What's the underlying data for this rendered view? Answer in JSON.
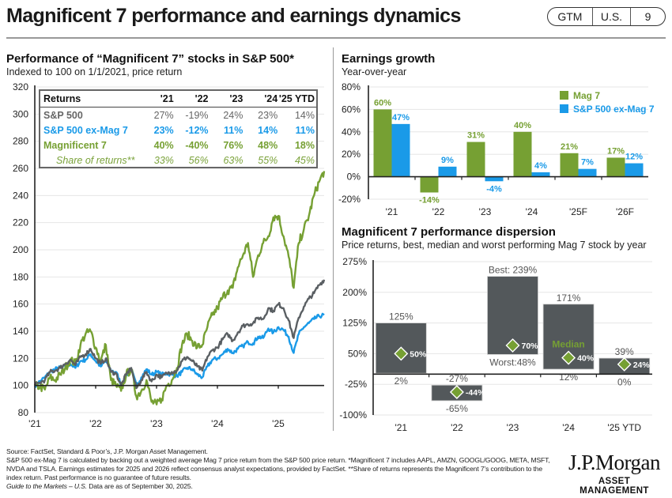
{
  "header": {
    "title": "Magnificent 7 performance and earnings dynamics",
    "badge": [
      "GTM",
      "U.S.",
      "9"
    ]
  },
  "colors": {
    "sp500": "#5a5f63",
    "ex_mag7": "#1a9ae8",
    "mag7": "#76a033",
    "dispersion_bar": "#53585b",
    "median_marker": "#76a033"
  },
  "performance_panel": {
    "title": "Performance of “Magnificent 7” stocks in S&P 500*",
    "subtitle": "Indexed to 100 on 1/1/2021, price return",
    "table": {
      "headers": [
        "Returns",
        "'21",
        "'22",
        "'23",
        "'24",
        "'25 YTD"
      ],
      "rows": [
        {
          "label": "S&P 500",
          "values": [
            "27%",
            "-19%",
            "24%",
            "23%",
            "14%"
          ]
        },
        {
          "label": "S&P 500 ex-Mag 7",
          "values": [
            "23%",
            "-12%",
            "11%",
            "14%",
            "11%"
          ]
        },
        {
          "label": "Magnificent 7",
          "values": [
            "40%",
            "-40%",
            "76%",
            "48%",
            "18%"
          ]
        },
        {
          "label": "Share of returns**",
          "values": [
            "33%",
            "56%",
            "63%",
            "55%",
            "45%"
          ]
        }
      ]
    }
  },
  "earnings_panel": {
    "title": "Earnings growth",
    "subtitle": "Year-over-year"
  },
  "dispersion_panel": {
    "title": "Magnificent 7 performance dispersion",
    "subtitle": "Price returns, best, median and worst performing Mag 7 stock by year"
  },
  "chart_data": [
    {
      "type": "line",
      "title": "Performance of “Magnificent 7” stocks in S&P 500*",
      "subtitle": "Indexed to 100 on 1/1/2021, price return",
      "xlabel": "",
      "ylabel": "",
      "x_ticks": [
        "'21",
        "'22",
        "'23",
        "'24",
        "'25"
      ],
      "y_ticks": [
        80,
        100,
        120,
        140,
        160,
        180,
        200,
        220,
        240,
        260,
        280,
        300,
        320
      ],
      "ylim": [
        80,
        320
      ],
      "xlim": [
        "2021-01",
        "2025-09"
      ],
      "grid": true,
      "x": [
        "2021-01",
        "2021-02",
        "2021-03",
        "2021-04",
        "2021-05",
        "2021-06",
        "2021-07",
        "2021-08",
        "2021-09",
        "2021-10",
        "2021-11",
        "2021-12",
        "2022-01",
        "2022-02",
        "2022-03",
        "2022-04",
        "2022-05",
        "2022-06",
        "2022-07",
        "2022-08",
        "2022-09",
        "2022-10",
        "2022-11",
        "2022-12",
        "2023-01",
        "2023-02",
        "2023-03",
        "2023-04",
        "2023-05",
        "2023-06",
        "2023-07",
        "2023-08",
        "2023-09",
        "2023-10",
        "2023-11",
        "2023-12",
        "2024-01",
        "2024-02",
        "2024-03",
        "2024-04",
        "2024-05",
        "2024-06",
        "2024-07",
        "2024-08",
        "2024-09",
        "2024-10",
        "2024-11",
        "2024-12",
        "2025-01",
        "2025-02",
        "2025-03",
        "2025-04",
        "2025-05",
        "2025-06",
        "2025-07",
        "2025-08",
        "2025-09",
        "2025-09e"
      ],
      "series": [
        {
          "name": "S&P 500",
          "values": [
            100,
            102,
            104,
            110,
            111,
            113,
            116,
            119,
            115,
            121,
            123,
            127,
            120,
            116,
            120,
            110,
            109,
            100,
            108,
            113,
            98,
            104,
            110,
            103,
            108,
            106,
            109,
            110,
            111,
            118,
            121,
            118,
            114,
            111,
            121,
            126,
            128,
            134,
            138,
            133,
            139,
            144,
            145,
            146,
            150,
            149,
            157,
            155,
            160,
            157,
            148,
            135,
            150,
            158,
            164,
            168,
            174,
            178
          ]
        },
        {
          "name": "S&P 500 ex-Mag 7",
          "values": [
            100,
            103,
            106,
            110,
            112,
            113,
            114,
            116,
            113,
            118,
            119,
            123,
            118,
            114,
            118,
            111,
            110,
            101,
            107,
            112,
            100,
            106,
            112,
            108,
            110,
            108,
            109,
            108,
            107,
            110,
            113,
            112,
            108,
            106,
            114,
            119,
            120,
            123,
            127,
            124,
            127,
            129,
            132,
            131,
            136,
            135,
            142,
            139,
            143,
            141,
            136,
            124,
            138,
            143,
            146,
            149,
            151,
            152
          ]
        },
        {
          "name": "Magnificent 7",
          "values": [
            100,
            99,
            97,
            106,
            104,
            108,
            113,
            119,
            116,
            130,
            138,
            140,
            128,
            118,
            130,
            104,
            100,
            96,
            108,
            112,
            92,
            96,
            104,
            88,
            86,
            90,
            100,
            104,
            113,
            130,
            138,
            133,
            128,
            130,
            143,
            152,
            157,
            165,
            170,
            172,
            187,
            196,
            205,
            180,
            196,
            205,
            210,
            224,
            225,
            210,
            195,
            172,
            205,
            215,
            225,
            240,
            250,
            258
          ]
        }
      ]
    },
    {
      "type": "bar",
      "title": "Earnings growth",
      "subtitle": "Year-over-year",
      "categories": [
        "'21",
        "'22",
        "'23",
        "'24",
        "'25F",
        "'26F"
      ],
      "series": [
        {
          "name": "Mag 7",
          "values": [
            60,
            -14,
            31,
            40,
            21,
            17
          ],
          "labels": [
            "60%",
            "-14%",
            "31%",
            "40%",
            "21%",
            "17%"
          ]
        },
        {
          "name": "S&P 500 ex-Mag 7",
          "values": [
            47,
            9,
            -4,
            4,
            7,
            12
          ],
          "labels": [
            "47%",
            "9%",
            "-4%",
            "4%",
            "7%",
            "12%"
          ]
        }
      ],
      "y_ticks": [
        "-20%",
        "0%",
        "20%",
        "40%",
        "60%",
        "80%"
      ],
      "ylim": [
        -20,
        80
      ],
      "grid": true,
      "legend": "top-right"
    },
    {
      "type": "bar",
      "subtype": "floating-range",
      "title": "Magnificent 7 performance dispersion",
      "subtitle": "Price returns, best, median and worst performing Mag 7 stock by year",
      "categories": [
        "'21",
        "'22",
        "'23",
        "'24",
        "'25 YTD"
      ],
      "best": [
        125,
        -27,
        239,
        171,
        39
      ],
      "median": [
        50,
        -44,
        70,
        40,
        24
      ],
      "worst": [
        2,
        -65,
        48,
        12,
        0
      ],
      "best_labels": [
        "125%",
        "-27%",
        "Best: 239%",
        "171%",
        "39%"
      ],
      "median_labels": [
        "50%",
        "-44%",
        "70%",
        "40%",
        "24%"
      ],
      "worst_labels": [
        "2%",
        "-65%",
        "Worst:48%",
        "12%",
        "0%"
      ],
      "annotation": "Median",
      "y_ticks": [
        "-100%",
        "-25%",
        "50%",
        "125%",
        "200%",
        "275%"
      ],
      "ylim": [
        -100,
        275
      ],
      "grid": true
    }
  ],
  "footer": {
    "source": "Source: FactSet, Standard & Poor’s, J.P. Morgan Asset Management.",
    "notes": "S&P 500 ex-Mag 7 is calculated by backing out a weighted average Mag 7 price return from the S&P 500 price return. *Magnificent 7 includes AAPL, AMZN, GOOGL/GOOG, META, MSFT, NVDA and TSLA. Earnings estimates for 2025 and 2026 reflect consensus analyst expectations, provided by FactSet. **Share of returns represents the Magnificent 7’s contribution to the index return. Past performance is no guarantee of future results.",
    "guide_italic": "Guide to the Markets – U.S.",
    "date_note": " Data are as of September 30, 2025."
  },
  "logo": {
    "name": "J.P.Morgan",
    "tagline": "ASSET MANAGEMENT"
  }
}
